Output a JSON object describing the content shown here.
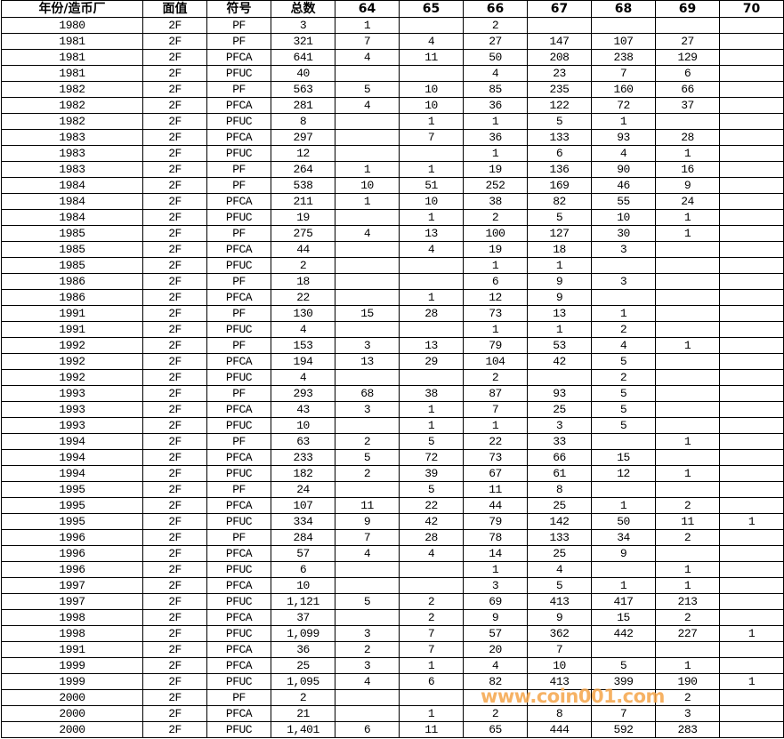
{
  "table": {
    "headers": [
      "年份/造币厂",
      "面值",
      "符号",
      "总数",
      "64",
      "65",
      "66",
      "67",
      "68",
      "69",
      "70"
    ],
    "rows": [
      [
        "1980",
        "2F",
        "PF",
        "3",
        "1",
        "",
        "2",
        "",
        "",
        "",
        ""
      ],
      [
        "1981",
        "2F",
        "PF",
        "321",
        "7",
        "4",
        "27",
        "147",
        "107",
        "27",
        ""
      ],
      [
        "1981",
        "2F",
        "PFCA",
        "641",
        "4",
        "11",
        "50",
        "208",
        "238",
        "129",
        ""
      ],
      [
        "1981",
        "2F",
        "PFUC",
        "40",
        "",
        "",
        "4",
        "23",
        "7",
        "6",
        ""
      ],
      [
        "1982",
        "2F",
        "PF",
        "563",
        "5",
        "10",
        "85",
        "235",
        "160",
        "66",
        ""
      ],
      [
        "1982",
        "2F",
        "PFCA",
        "281",
        "4",
        "10",
        "36",
        "122",
        "72",
        "37",
        ""
      ],
      [
        "1982",
        "2F",
        "PFUC",
        "8",
        "",
        "1",
        "1",
        "5",
        "1",
        "",
        ""
      ],
      [
        "1983",
        "2F",
        "PFCA",
        "297",
        "",
        "7",
        "36",
        "133",
        "93",
        "28",
        ""
      ],
      [
        "1983",
        "2F",
        "PFUC",
        "12",
        "",
        "",
        "1",
        "6",
        "4",
        "1",
        ""
      ],
      [
        "1983",
        "2F",
        "PF",
        "264",
        "1",
        "1",
        "19",
        "136",
        "90",
        "16",
        ""
      ],
      [
        "1984",
        "2F",
        "PF",
        "538",
        "10",
        "51",
        "252",
        "169",
        "46",
        "9",
        ""
      ],
      [
        "1984",
        "2F",
        "PFCA",
        "211",
        "1",
        "10",
        "38",
        "82",
        "55",
        "24",
        ""
      ],
      [
        "1984",
        "2F",
        "PFUC",
        "19",
        "",
        "1",
        "2",
        "5",
        "10",
        "1",
        ""
      ],
      [
        "1985",
        "2F",
        "PF",
        "275",
        "4",
        "13",
        "100",
        "127",
        "30",
        "1",
        ""
      ],
      [
        "1985",
        "2F",
        "PFCA",
        "44",
        "",
        "4",
        "19",
        "18",
        "3",
        "",
        ""
      ],
      [
        "1985",
        "2F",
        "PFUC",
        "2",
        "",
        "",
        "1",
        "1",
        "",
        "",
        ""
      ],
      [
        "1986",
        "2F",
        "PF",
        "18",
        "",
        "",
        "6",
        "9",
        "3",
        "",
        ""
      ],
      [
        "1986",
        "2F",
        "PFCA",
        "22",
        "",
        "1",
        "12",
        "9",
        "",
        "",
        ""
      ],
      [
        "1991",
        "2F",
        "PF",
        "130",
        "15",
        "28",
        "73",
        "13",
        "1",
        "",
        ""
      ],
      [
        "1991",
        "2F",
        "PFUC",
        "4",
        "",
        "",
        "1",
        "1",
        "2",
        "",
        ""
      ],
      [
        "1992",
        "2F",
        "PF",
        "153",
        "3",
        "13",
        "79",
        "53",
        "4",
        "1",
        ""
      ],
      [
        "1992",
        "2F",
        "PFCA",
        "194",
        "13",
        "29",
        "104",
        "42",
        "5",
        "",
        ""
      ],
      [
        "1992",
        "2F",
        "PFUC",
        "4",
        "",
        "",
        "2",
        "",
        "2",
        "",
        ""
      ],
      [
        "1993",
        "2F",
        "PF",
        "293",
        "68",
        "38",
        "87",
        "93",
        "5",
        "",
        ""
      ],
      [
        "1993",
        "2F",
        "PFCA",
        "43",
        "3",
        "1",
        "7",
        "25",
        "5",
        "",
        ""
      ],
      [
        "1993",
        "2F",
        "PFUC",
        "10",
        "",
        "1",
        "1",
        "3",
        "5",
        "",
        ""
      ],
      [
        "1994",
        "2F",
        "PF",
        "63",
        "2",
        "5",
        "22",
        "33",
        "",
        "1",
        ""
      ],
      [
        "1994",
        "2F",
        "PFCA",
        "233",
        "5",
        "72",
        "73",
        "66",
        "15",
        "",
        ""
      ],
      [
        "1994",
        "2F",
        "PFUC",
        "182",
        "2",
        "39",
        "67",
        "61",
        "12",
        "1",
        ""
      ],
      [
        "1995",
        "2F",
        "PF",
        "24",
        "",
        "5",
        "11",
        "8",
        "",
        "",
        ""
      ],
      [
        "1995",
        "2F",
        "PFCA",
        "107",
        "11",
        "22",
        "44",
        "25",
        "1",
        "2",
        ""
      ],
      [
        "1995",
        "2F",
        "PFUC",
        "334",
        "9",
        "42",
        "79",
        "142",
        "50",
        "11",
        "1"
      ],
      [
        "1996",
        "2F",
        "PF",
        "284",
        "7",
        "28",
        "78",
        "133",
        "34",
        "2",
        ""
      ],
      [
        "1996",
        "2F",
        "PFCA",
        "57",
        "4",
        "4",
        "14",
        "25",
        "9",
        "",
        ""
      ],
      [
        "1996",
        "2F",
        "PFUC",
        "6",
        "",
        "",
        "1",
        "4",
        "",
        "1",
        ""
      ],
      [
        "1997",
        "2F",
        "PFCA",
        "10",
        "",
        "",
        "3",
        "5",
        "1",
        "1",
        ""
      ],
      [
        "1997",
        "2F",
        "PFUC",
        "1,121",
        "5",
        "2",
        "69",
        "413",
        "417",
        "213",
        ""
      ],
      [
        "1998",
        "2F",
        "PFCA",
        "37",
        "",
        "2",
        "9",
        "9",
        "15",
        "2",
        ""
      ],
      [
        "1998",
        "2F",
        "PFUC",
        "1,099",
        "3",
        "7",
        "57",
        "362",
        "442",
        "227",
        "1"
      ],
      [
        "1991",
        "2F",
        "PFCA",
        "36",
        "2",
        "7",
        "20",
        "7",
        "",
        "",
        ""
      ],
      [
        "1999",
        "2F",
        "PFCA",
        "25",
        "3",
        "1",
        "4",
        "10",
        "5",
        "1",
        ""
      ],
      [
        "1999",
        "2F",
        "PFUC",
        "1,095",
        "4",
        "6",
        "82",
        "413",
        "399",
        "190",
        "1"
      ],
      [
        "2000",
        "2F",
        "PF",
        "2",
        "",
        "",
        "",
        "",
        "",
        "2",
        ""
      ],
      [
        "2000",
        "2F",
        "PFCA",
        "21",
        "",
        "1",
        "2",
        "8",
        "7",
        "3",
        ""
      ],
      [
        "2000",
        "2F",
        "PFUC",
        "1,401",
        "6",
        "11",
        "65",
        "444",
        "592",
        "283",
        ""
      ]
    ]
  },
  "watermark": {
    "text": "www.coin001.com",
    "color": "#f5a54a"
  }
}
